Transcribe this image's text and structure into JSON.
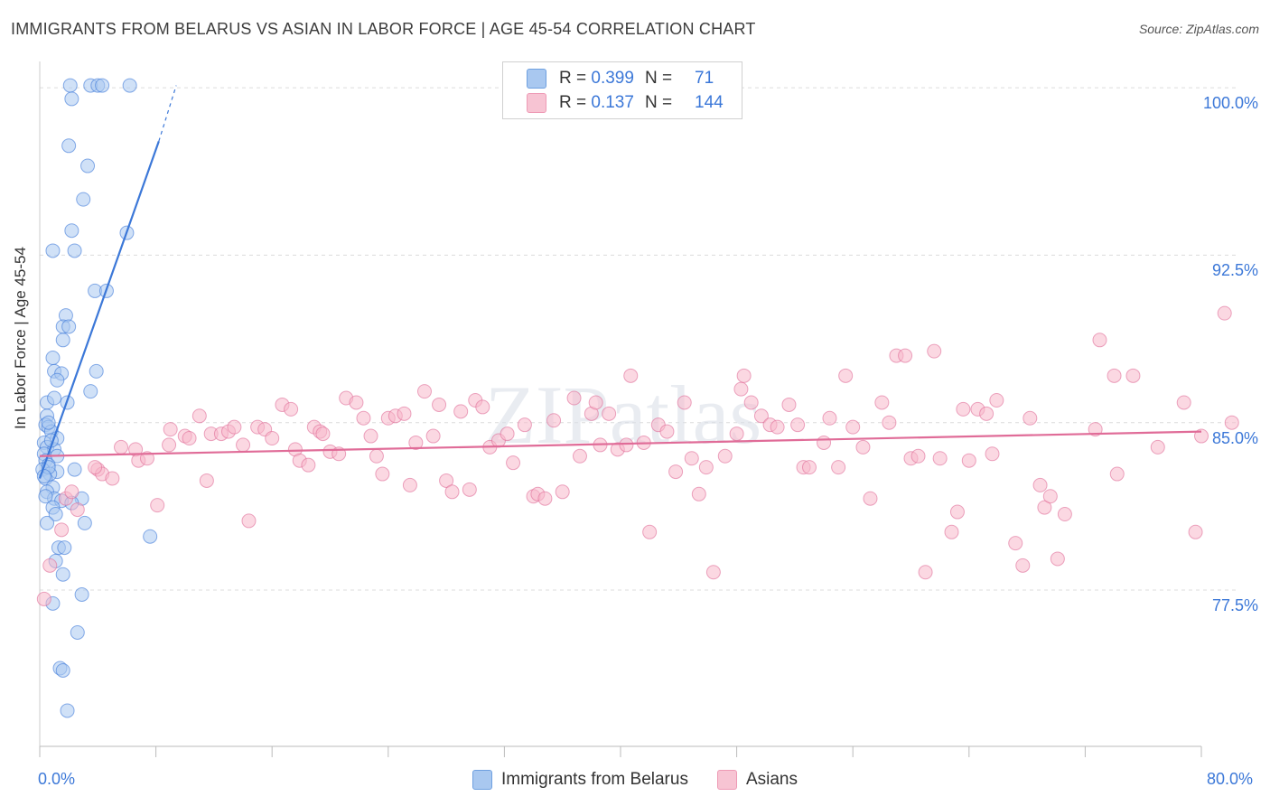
{
  "title": "IMMIGRANTS FROM BELARUS VS ASIAN IN LABOR FORCE | AGE 45-54 CORRELATION CHART",
  "source": "Source: ZipAtlas.com",
  "watermark": "ZIPatlas",
  "legend": {
    "rows": [
      {
        "r_label": "R =",
        "r_value": "0.399",
        "n_label": "N =",
        "n_value": "71",
        "color": "#a9c8f0"
      },
      {
        "r_label": "R =",
        "r_value": "0.137",
        "n_label": "N =",
        "n_value": "144",
        "color": "#f7b8cb"
      }
    ]
  },
  "bottom_legend": [
    {
      "label": "Immigrants from Belarus",
      "color": "#a9c8f0"
    },
    {
      "label": "Asians",
      "color": "#f7b8cb"
    }
  ],
  "chart_data": {
    "type": "scatter",
    "title": "IMMIGRANTS FROM BELARUS VS ASIAN IN LABOR FORCE | AGE 45-54 CORRELATION CHART",
    "xlabel": "",
    "ylabel": "In Labor Force | Age 45-54",
    "xlim": [
      0,
      80
    ],
    "ylim": [
      70.5,
      101.5
    ],
    "x_tick_labels": [
      "0.0%",
      "80.0%"
    ],
    "y_ticks": [
      77.5,
      85.0,
      92.5,
      100.0
    ],
    "y_tick_labels": [
      "77.5%",
      "85.0%",
      "92.5%",
      "100.0%"
    ],
    "grid": "horizontal dashed",
    "legend_position": "top-center",
    "series": [
      {
        "name": "Immigrants from Belarus",
        "color": "#3c78d8",
        "fill": "#a9c8f0",
        "trend": {
          "x": [
            0.0,
            8.2
          ],
          "y": [
            82.5,
            97.6
          ],
          "dashed_to": [
            9.4,
            100.1
          ]
        },
        "points": [
          [
            2.1,
            100.1
          ],
          [
            3.5,
            100.1
          ],
          [
            4.0,
            100.1
          ],
          [
            4.3,
            100.1
          ],
          [
            6.2,
            100.1
          ],
          [
            2.2,
            99.5
          ],
          [
            2.0,
            97.4
          ],
          [
            3.3,
            96.5
          ],
          [
            3.0,
            95.0
          ],
          [
            2.2,
            93.6
          ],
          [
            6.0,
            93.5
          ],
          [
            0.9,
            92.7
          ],
          [
            2.4,
            92.7
          ],
          [
            3.8,
            90.9
          ],
          [
            4.6,
            90.9
          ],
          [
            1.8,
            89.8
          ],
          [
            1.6,
            89.3
          ],
          [
            2.0,
            89.3
          ],
          [
            1.6,
            88.7
          ],
          [
            0.9,
            87.9
          ],
          [
            1.0,
            87.3
          ],
          [
            1.5,
            87.2
          ],
          [
            3.9,
            87.3
          ],
          [
            1.2,
            86.9
          ],
          [
            3.5,
            86.4
          ],
          [
            1.9,
            85.9
          ],
          [
            0.5,
            85.9
          ],
          [
            0.5,
            85.3
          ],
          [
            0.4,
            84.9
          ],
          [
            0.6,
            84.8
          ],
          [
            0.8,
            84.6
          ],
          [
            0.3,
            84.1
          ],
          [
            1.2,
            84.3
          ],
          [
            0.5,
            83.9
          ],
          [
            1.0,
            83.8
          ],
          [
            0.3,
            83.6
          ],
          [
            1.2,
            83.5
          ],
          [
            0.4,
            83.3
          ],
          [
            0.6,
            83.1
          ],
          [
            0.2,
            82.9
          ],
          [
            2.4,
            82.9
          ],
          [
            1.2,
            82.8
          ],
          [
            0.7,
            82.7
          ],
          [
            0.4,
            82.5
          ],
          [
            0.9,
            82.1
          ],
          [
            0.5,
            81.9
          ],
          [
            1.0,
            81.6
          ],
          [
            2.9,
            81.6
          ],
          [
            0.4,
            81.7
          ],
          [
            1.5,
            81.5
          ],
          [
            2.2,
            81.4
          ],
          [
            0.9,
            81.2
          ],
          [
            1.1,
            80.9
          ],
          [
            3.1,
            80.5
          ],
          [
            0.5,
            80.5
          ],
          [
            7.6,
            79.9
          ],
          [
            1.3,
            79.4
          ],
          [
            1.7,
            79.4
          ],
          [
            1.1,
            78.8
          ],
          [
            1.6,
            78.2
          ],
          [
            0.9,
            76.9
          ],
          [
            2.9,
            77.3
          ],
          [
            2.6,
            75.6
          ],
          [
            1.4,
            74.0
          ],
          [
            1.6,
            73.9
          ],
          [
            1.9,
            72.1
          ],
          [
            0.6,
            83.0
          ],
          [
            0.3,
            82.6
          ],
          [
            0.8,
            84.2
          ],
          [
            1.0,
            86.1
          ],
          [
            0.6,
            85.0
          ]
        ]
      },
      {
        "name": "Asians",
        "color": "#e06c98",
        "fill": "#f7b8cb",
        "trend": {
          "x": [
            0.0,
            80.0
          ],
          "y": [
            83.5,
            84.6
          ]
        },
        "points": [
          [
            0.3,
            77.1
          ],
          [
            0.7,
            78.6
          ],
          [
            1.5,
            80.2
          ],
          [
            1.8,
            81.6
          ],
          [
            2.6,
            81.1
          ],
          [
            2.2,
            81.9
          ],
          [
            4.0,
            82.9
          ],
          [
            4.3,
            82.7
          ],
          [
            3.8,
            83.0
          ],
          [
            5.0,
            82.5
          ],
          [
            5.6,
            83.9
          ],
          [
            6.6,
            83.8
          ],
          [
            6.8,
            83.3
          ],
          [
            7.4,
            83.4
          ],
          [
            8.9,
            84.0
          ],
          [
            9.0,
            84.7
          ],
          [
            8.1,
            81.3
          ],
          [
            11.5,
            82.4
          ],
          [
            10.0,
            84.4
          ],
          [
            10.3,
            84.3
          ],
          [
            11.0,
            85.3
          ],
          [
            11.8,
            84.5
          ],
          [
            12.5,
            84.5
          ],
          [
            13.0,
            84.6
          ],
          [
            13.4,
            84.8
          ],
          [
            14.0,
            84.0
          ],
          [
            14.4,
            80.6
          ],
          [
            15.0,
            84.8
          ],
          [
            15.5,
            84.7
          ],
          [
            16.0,
            84.3
          ],
          [
            16.7,
            85.8
          ],
          [
            17.3,
            85.6
          ],
          [
            17.6,
            83.8
          ],
          [
            17.9,
            83.3
          ],
          [
            18.5,
            83.1
          ],
          [
            18.9,
            84.8
          ],
          [
            19.3,
            84.6
          ],
          [
            19.5,
            84.5
          ],
          [
            20.0,
            83.7
          ],
          [
            20.6,
            83.6
          ],
          [
            21.1,
            86.1
          ],
          [
            21.8,
            85.9
          ],
          [
            22.3,
            85.2
          ],
          [
            22.8,
            84.4
          ],
          [
            23.2,
            83.5
          ],
          [
            23.6,
            82.7
          ],
          [
            24.0,
            85.2
          ],
          [
            24.5,
            85.3
          ],
          [
            25.1,
            85.4
          ],
          [
            25.5,
            82.2
          ],
          [
            25.9,
            84.1
          ],
          [
            26.5,
            86.4
          ],
          [
            27.1,
            84.4
          ],
          [
            27.5,
            85.8
          ],
          [
            28.0,
            82.4
          ],
          [
            28.4,
            81.9
          ],
          [
            29.0,
            85.5
          ],
          [
            29.6,
            82.0
          ],
          [
            30.0,
            86.0
          ],
          [
            30.5,
            85.7
          ],
          [
            31.0,
            83.9
          ],
          [
            31.6,
            84.2
          ],
          [
            32.2,
            84.5
          ],
          [
            32.6,
            83.2
          ],
          [
            33.4,
            84.9
          ],
          [
            34.0,
            81.7
          ],
          [
            34.3,
            81.8
          ],
          [
            34.8,
            81.6
          ],
          [
            35.4,
            85.1
          ],
          [
            36.0,
            81.9
          ],
          [
            36.8,
            86.1
          ],
          [
            37.2,
            83.5
          ],
          [
            38.0,
            85.4
          ],
          [
            38.3,
            85.9
          ],
          [
            38.6,
            84.0
          ],
          [
            39.2,
            85.4
          ],
          [
            39.8,
            83.8
          ],
          [
            40.4,
            84.0
          ],
          [
            40.7,
            87.1
          ],
          [
            41.6,
            84.1
          ],
          [
            42.0,
            80.1
          ],
          [
            42.6,
            84.9
          ],
          [
            43.2,
            84.6
          ],
          [
            43.8,
            82.8
          ],
          [
            44.4,
            85.9
          ],
          [
            44.9,
            83.4
          ],
          [
            45.4,
            81.8
          ],
          [
            45.9,
            83.0
          ],
          [
            46.4,
            78.3
          ],
          [
            47.2,
            83.5
          ],
          [
            48.0,
            84.5
          ],
          [
            48.3,
            86.5
          ],
          [
            48.5,
            87.1
          ],
          [
            49.0,
            85.9
          ],
          [
            49.7,
            85.3
          ],
          [
            50.3,
            84.9
          ],
          [
            50.8,
            84.8
          ],
          [
            51.6,
            85.8
          ],
          [
            52.2,
            84.9
          ],
          [
            52.6,
            83.0
          ],
          [
            53.0,
            83.0
          ],
          [
            54.0,
            84.1
          ],
          [
            54.4,
            85.2
          ],
          [
            55.0,
            83.0
          ],
          [
            55.5,
            87.1
          ],
          [
            56.0,
            84.8
          ],
          [
            56.7,
            83.9
          ],
          [
            57.2,
            81.6
          ],
          [
            58.0,
            85.9
          ],
          [
            58.5,
            85.0
          ],
          [
            59.0,
            88.0
          ],
          [
            59.6,
            88.0
          ],
          [
            60.0,
            83.4
          ],
          [
            60.5,
            83.5
          ],
          [
            61.0,
            78.3
          ],
          [
            61.6,
            88.2
          ],
          [
            62.0,
            83.4
          ],
          [
            62.8,
            80.1
          ],
          [
            63.2,
            81.0
          ],
          [
            63.6,
            85.6
          ],
          [
            64.0,
            83.3
          ],
          [
            64.6,
            85.6
          ],
          [
            65.2,
            85.4
          ],
          [
            65.6,
            83.6
          ],
          [
            65.9,
            86.0
          ],
          [
            67.2,
            79.6
          ],
          [
            67.7,
            78.6
          ],
          [
            68.2,
            85.2
          ],
          [
            68.9,
            82.2
          ],
          [
            69.2,
            81.2
          ],
          [
            69.6,
            81.7
          ],
          [
            70.1,
            78.9
          ],
          [
            70.6,
            80.9
          ],
          [
            72.7,
            84.7
          ],
          [
            73.0,
            88.7
          ],
          [
            74.0,
            87.1
          ],
          [
            74.2,
            82.7
          ],
          [
            75.3,
            87.1
          ],
          [
            77.0,
            83.9
          ],
          [
            78.8,
            85.9
          ],
          [
            79.6,
            80.1
          ],
          [
            80.0,
            84.4
          ],
          [
            81.6,
            89.9
          ],
          [
            82.1,
            85.0
          ]
        ]
      }
    ]
  }
}
